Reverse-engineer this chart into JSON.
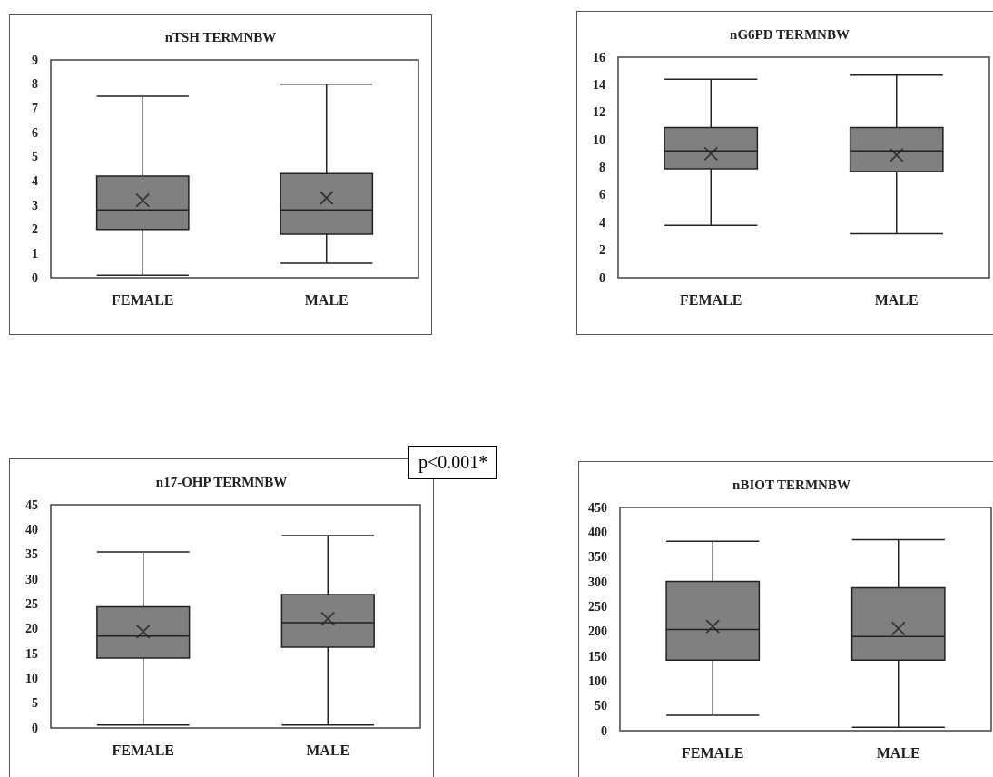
{
  "chart_data": [
    {
      "type": "box",
      "title": "nTSH TERMNBW",
      "categories": [
        "FEMALE",
        "MALE"
      ],
      "ylim": [
        0,
        9
      ],
      "yticks": [
        0,
        1,
        2,
        3,
        4,
        5,
        6,
        7,
        8,
        9
      ],
      "grid": false,
      "marker": "cross",
      "color": "#808080",
      "boxes": [
        {
          "low": 0.1,
          "q1": 2.0,
          "median": 2.8,
          "q3": 4.2,
          "high": 7.5,
          "mean": 3.2
        },
        {
          "low": 0.6,
          "q1": 1.8,
          "median": 2.8,
          "q3": 4.3,
          "high": 8.0,
          "mean": 3.3
        }
      ]
    },
    {
      "type": "box",
      "title": "nG6PD TERMNBW",
      "categories": [
        "FEMALE",
        "MALE"
      ],
      "ylim": [
        0,
        16
      ],
      "yticks": [
        0,
        2,
        4,
        6,
        8,
        10,
        12,
        14,
        16
      ],
      "grid": false,
      "marker": "cross",
      "color": "#808080",
      "boxes": [
        {
          "low": 3.8,
          "q1": 7.9,
          "median": 9.2,
          "q3": 10.9,
          "high": 14.4,
          "mean": 9.0
        },
        {
          "low": 3.2,
          "q1": 7.7,
          "median": 9.2,
          "q3": 10.9,
          "high": 14.7,
          "mean": 8.9
        }
      ]
    },
    {
      "type": "box",
      "title": "n17-OHP TERMNBW",
      "categories": [
        "FEMALE",
        "MALE"
      ],
      "ylim": [
        0,
        45
      ],
      "yticks": [
        0,
        5,
        10,
        15,
        20,
        25,
        30,
        35,
        40,
        45
      ],
      "grid": false,
      "marker": "cross",
      "color": "#808080",
      "annotations": [
        "p<0.001*"
      ],
      "boxes": [
        {
          "low": 0.6,
          "q1": 14.1,
          "median": 18.5,
          "q3": 24.4,
          "high": 35.5,
          "mean": 19.4
        },
        {
          "low": 0.6,
          "q1": 16.3,
          "median": 21.2,
          "q3": 26.9,
          "high": 38.8,
          "mean": 22.0
        }
      ]
    },
    {
      "type": "box",
      "title": "nBIOT TERMNBW",
      "categories": [
        "FEMALE",
        "MALE"
      ],
      "ylim": [
        0,
        450
      ],
      "yticks": [
        0,
        50,
        100,
        150,
        200,
        250,
        300,
        350,
        400,
        450
      ],
      "grid": false,
      "marker": "cross",
      "color": "#808080",
      "boxes": [
        {
          "low": 31,
          "q1": 142,
          "median": 204,
          "q3": 301,
          "high": 382,
          "mean": 210
        },
        {
          "low": 7,
          "q1": 142,
          "median": 190,
          "q3": 288,
          "high": 385,
          "mean": 206
        }
      ]
    }
  ]
}
